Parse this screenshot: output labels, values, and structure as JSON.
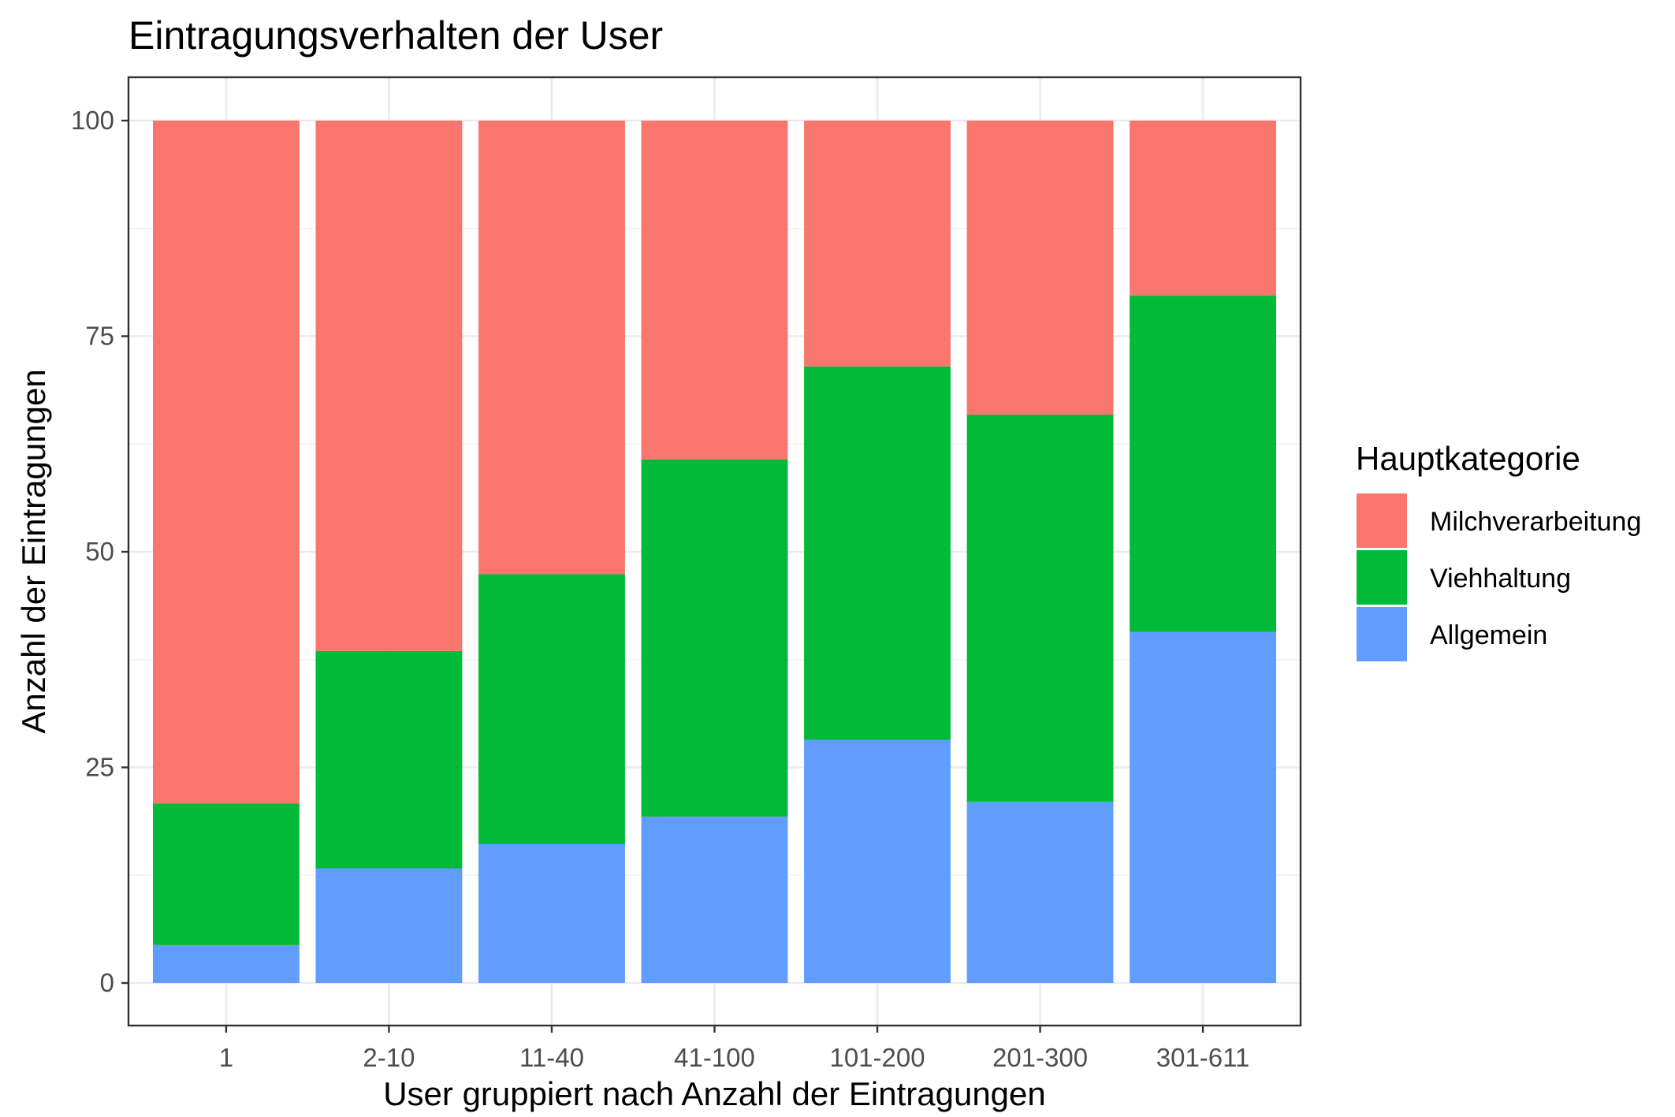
{
  "chart_data": {
    "type": "bar",
    "stacked": true,
    "title": "Eintragungsverhalten der User",
    "xlabel": "User gruppiert nach Anzahl der Eintragungen",
    "ylabel": "Anzahl der Eintragungen",
    "ylim": [
      0,
      105
    ],
    "yticks": [
      0,
      25,
      50,
      75,
      100
    ],
    "grid": true,
    "categories": [
      "1",
      "2-10",
      "11-40",
      "41-100",
      "101-200",
      "201-300",
      "301-611"
    ],
    "legend": {
      "title": "Hauptkategorie",
      "placement": "right"
    },
    "series": [
      {
        "name": "Allgemein",
        "color": "#619CFF",
        "values": [
          4.4,
          13.3,
          16.1,
          19.3,
          28.2,
          21.0,
          40.7
        ]
      },
      {
        "name": "Viehhaltung",
        "color": "#00BA38",
        "values": [
          16.4,
          25.2,
          31.3,
          41.4,
          43.3,
          44.9,
          39.0
        ]
      },
      {
        "name": "Milchverarbeitung",
        "color": "#F8766D",
        "values": [
          79.2,
          61.5,
          52.6,
          39.3,
          28.5,
          34.1,
          20.3
        ]
      }
    ],
    "legend_order": [
      "Milchverarbeitung",
      "Viehhaltung",
      "Allgemein"
    ]
  }
}
